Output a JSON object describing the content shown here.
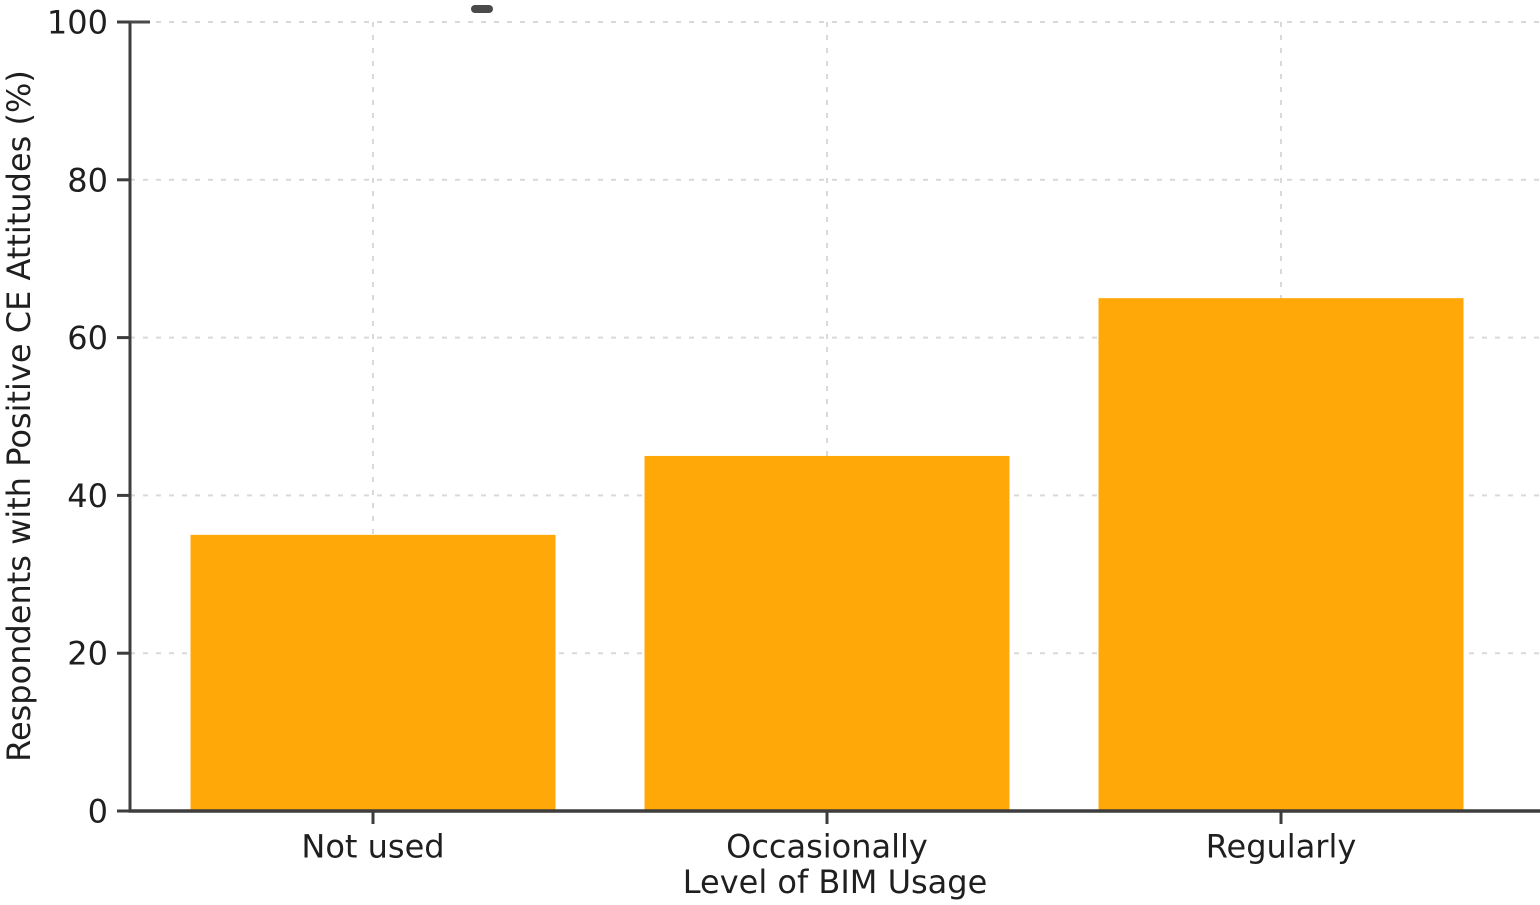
{
  "chart_data": {
    "type": "bar",
    "title": "",
    "categories": [
      "Not used",
      "Occasionally",
      "Regularly"
    ],
    "values": [
      35,
      45,
      65
    ],
    "xlabel": "Level of BIM Usage",
    "ylabel": "Respondents with Positive CE Attitudes (%)",
    "ylim": [
      0,
      100
    ],
    "yticks": [
      0,
      20,
      40,
      60,
      80,
      100
    ],
    "legend": "none",
    "grid": "dashed horizontal and vertical gridlines",
    "bar_color": "#FFA808",
    "grid_color": "#D9D9D9",
    "spine_color": "#3D3D3D",
    "tick_color": "#3D3D3D",
    "text_color": "#1F1F1F",
    "background_color": "#FFFFFF",
    "note": "cropped figure title fragment visible at top edge"
  }
}
